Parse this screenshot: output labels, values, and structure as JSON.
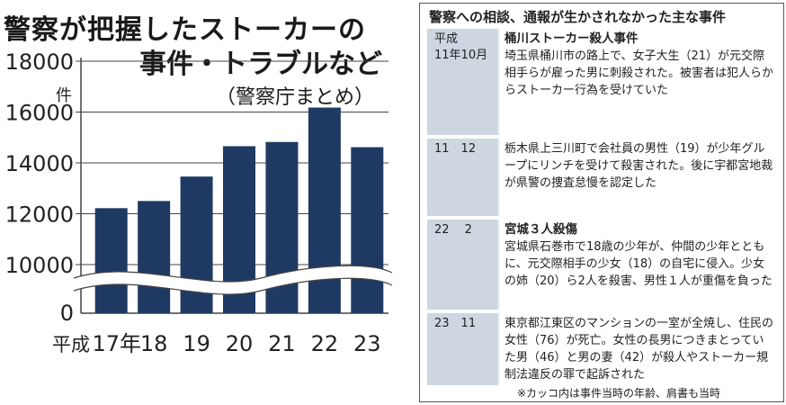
{
  "chart": {
    "title_line1": "警察が把握したストーカーの",
    "title_line2": "事件・トラブルなど",
    "title_line3": "（警察庁まとめ）",
    "unit": "件",
    "x_prefix": "平成",
    "x_first_suffix": "年",
    "y_ticks": [
      "18000",
      "16000",
      "14000",
      "12000",
      "10000",
      "0"
    ]
  },
  "chart_data": {
    "type": "bar",
    "categories": [
      "17",
      "18",
      "19",
      "20",
      "21",
      "22",
      "23"
    ],
    "values": [
      12220,
      12501,
      13463,
      14657,
      14823,
      16176,
      14618
    ],
    "title": "警察が把握したストーカーの事件・トラブルなど",
    "subtitle": "（警察庁まとめ）",
    "ylabel": "件",
    "y_axis_break": [
      0,
      9000
    ],
    "ylim": [
      9000,
      18000
    ],
    "grid": true,
    "bar_color": "#1f3a62"
  },
  "panel": {
    "title": "警察への相談、通報が生かされなかった主な事件",
    "cases": [
      {
        "date_line1": "平成",
        "date_line2": "11年10月",
        "headline": "桶川ストーカー殺人事件",
        "text": "埼玉県桶川市の路上で、女子大生（21）が元交際相手らが雇った男に刺殺された。被害者は犯人らからストーカー行為を受けていた"
      },
      {
        "date_line1": "11　12",
        "date_line2": "",
        "headline": "",
        "text": "栃木県上三川町で会社員の男性（19）が少年グループにリンチを受けて殺害された。後に宇都宮地裁が県警の捜査怠慢を認定した"
      },
      {
        "date_line1": "22　 2",
        "date_line2": "",
        "headline": "宮城３人殺傷",
        "text": "宮城県石巻市で18歳の少年が、仲間の少年とともに、元交際相手の少女（18）の自宅に侵入。少女の姉（20）ら2人を殺害、男性１人が重傷を負った"
      },
      {
        "date_line1": "23　11",
        "date_line2": "",
        "headline": "",
        "text": "東京都江東区のマンションの一室が全焼し、住民の女性（76）が死亡。女性の長男につきまとっていた男（46）と男の妻（42）が殺人やストーカー規制法違反の罪で起訴された"
      }
    ],
    "note": "※カッコ内は事件当時の年齢、肩書も当時"
  }
}
